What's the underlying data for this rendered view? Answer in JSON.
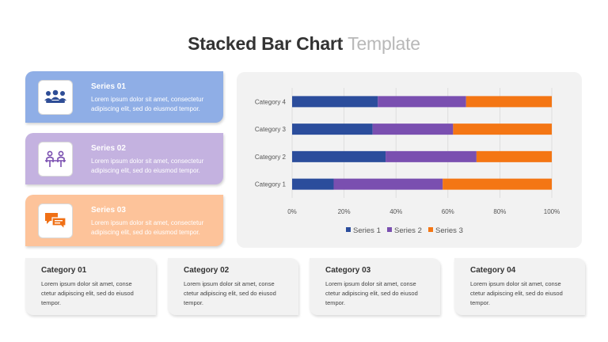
{
  "header": {
    "title_bold": "Stacked Bar Chart",
    "title_light": "Template"
  },
  "series_cards": [
    {
      "title": "Series 01",
      "text": "Lorem ipsum dolor sit amet, consectetur adipiscing elit, sed do eiusmod tempor.",
      "color": "#8faee6",
      "icon": "team-meeting-icon",
      "icon_color": "#2e4d96"
    },
    {
      "title": "Series 02",
      "text": "Lorem ipsum dolor sit amet, consectetur adipiscing elit, sed do eiusmod tempor.",
      "color": "#c4b2e0",
      "icon": "people-at-desk-icon",
      "icon_color": "#7a4fb0"
    },
    {
      "title": "Series 03",
      "text": "Lorem ipsum dolor sit amet, consectetur adipiscing elit, sed do eiusmod tempor.",
      "color": "#fdc39a",
      "icon": "chat-bubbles-icon",
      "icon_color": "#f07015"
    }
  ],
  "category_cards": [
    {
      "title": "Category 01",
      "text": "Lorem ipsum dolor sit amet, conse ctetur adipiscing elit, sed do eiusod tempor."
    },
    {
      "title": "Category 02",
      "text": "Lorem ipsum dolor sit amet, conse ctetur adipiscing elit, sed do eiusod tempor."
    },
    {
      "title": "Category 03",
      "text": "Lorem ipsum dolor sit amet, conse ctetur adipiscing elit, sed do eiusod tempor."
    },
    {
      "title": "Category 04",
      "text": "Lorem ipsum dolor sit amet, conse ctetur adipiscing elit, sed do eiusod tempor."
    }
  ],
  "chart_data": {
    "type": "bar",
    "orientation": "horizontal",
    "stacked": true,
    "percent_stacked": true,
    "categories": [
      "Category 1",
      "Category 2",
      "Category 3",
      "Category 4"
    ],
    "series": [
      {
        "name": "Series 1",
        "color": "#2b4d9c",
        "values": [
          16,
          36,
          31,
          33
        ]
      },
      {
        "name": "Series 2",
        "color": "#7a4fb0",
        "values": [
          42,
          35,
          31,
          34
        ]
      },
      {
        "name": "Series 3",
        "color": "#f47614",
        "values": [
          42,
          29,
          38,
          33
        ]
      }
    ],
    "x_ticks": [
      "0%",
      "20%",
      "40%",
      "60%",
      "80%",
      "100%"
    ],
    "xlim": [
      0,
      100
    ],
    "grid": "vertical",
    "legend": "bottom"
  }
}
